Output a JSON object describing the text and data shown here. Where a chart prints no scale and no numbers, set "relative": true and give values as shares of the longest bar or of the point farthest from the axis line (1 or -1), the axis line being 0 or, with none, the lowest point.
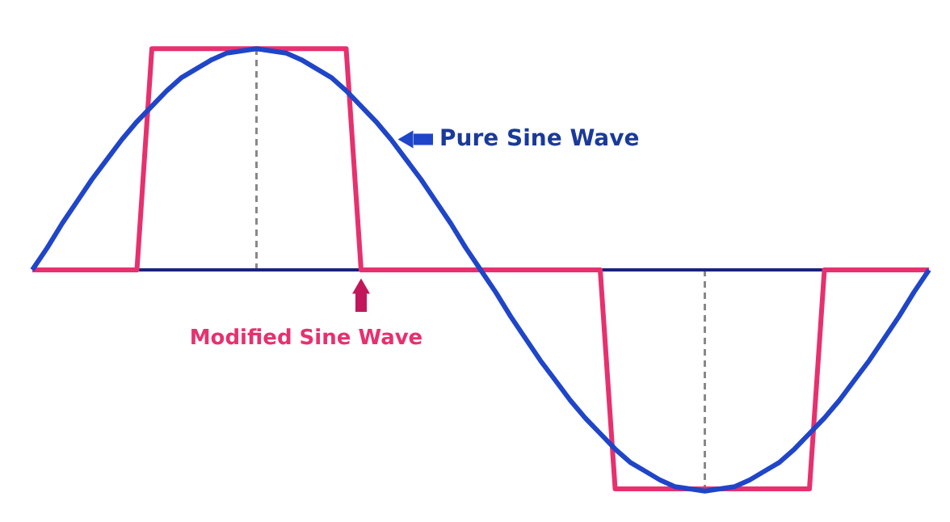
{
  "chart_data": {
    "type": "line",
    "relative": true,
    "marker": "none",
    "line_style": "solid",
    "categories": [
      null,
      null,
      null,
      null,
      null,
      null,
      null,
      null,
      null,
      null,
      null,
      null,
      null,
      null,
      null,
      null,
      null,
      null,
      null,
      null,
      null,
      null,
      null,
      null,
      null,
      null,
      null,
      null,
      null,
      null,
      null,
      null,
      null,
      null,
      null,
      null,
      null,
      null,
      null,
      null,
      null,
      null,
      null,
      null,
      null,
      null,
      null,
      null,
      null,
      null,
      null,
      null,
      null,
      null,
      null,
      null,
      null,
      null,
      null,
      null,
      null
    ],
    "series": [
      {
        "name": "Pure Sine Wave",
        "color": "#1f45c8",
        "values": [
          0,
          0.1,
          0.21,
          0.31,
          0.41,
          0.5,
          0.59,
          0.67,
          0.74,
          0.81,
          0.87,
          0.91,
          0.95,
          0.98,
          0.99,
          1,
          0.99,
          0.98,
          0.95,
          0.91,
          0.87,
          0.81,
          0.74,
          0.67,
          0.59,
          0.5,
          0.41,
          0.31,
          0.21,
          0.1,
          0,
          -0.1,
          -0.21,
          -0.31,
          -0.41,
          -0.5,
          -0.59,
          -0.67,
          -0.74,
          -0.81,
          -0.87,
          -0.91,
          -0.95,
          -0.98,
          -0.99,
          -1,
          -0.99,
          -0.98,
          -0.95,
          -0.91,
          -0.87,
          -0.81,
          -0.74,
          -0.67,
          -0.59,
          -0.5,
          -0.41,
          -0.31,
          -0.21,
          -0.1,
          0
        ]
      },
      {
        "name": "Modified Sine Wave",
        "color": "#e8306e",
        "values": [
          0,
          0,
          0,
          0,
          0,
          0,
          0,
          0,
          1,
          1,
          1,
          1,
          1,
          1,
          1,
          1,
          1,
          1,
          1,
          1,
          1,
          1,
          0,
          0,
          0,
          0,
          0,
          0,
          0,
          0,
          0,
          0,
          0,
          0,
          0,
          0,
          0,
          0,
          0,
          -0.99,
          -0.99,
          -0.99,
          -0.99,
          -0.99,
          -0.99,
          -0.99,
          -0.99,
          -0.99,
          -0.99,
          -0.99,
          -0.99,
          -0.99,
          -0.99,
          0,
          0,
          0,
          0,
          0,
          0,
          0,
          0
        ]
      }
    ],
    "ref_lines": [
      {
        "axis": "y",
        "value": 0,
        "color": "#1a237e",
        "line_style": "solid"
      }
    ]
  }
}
